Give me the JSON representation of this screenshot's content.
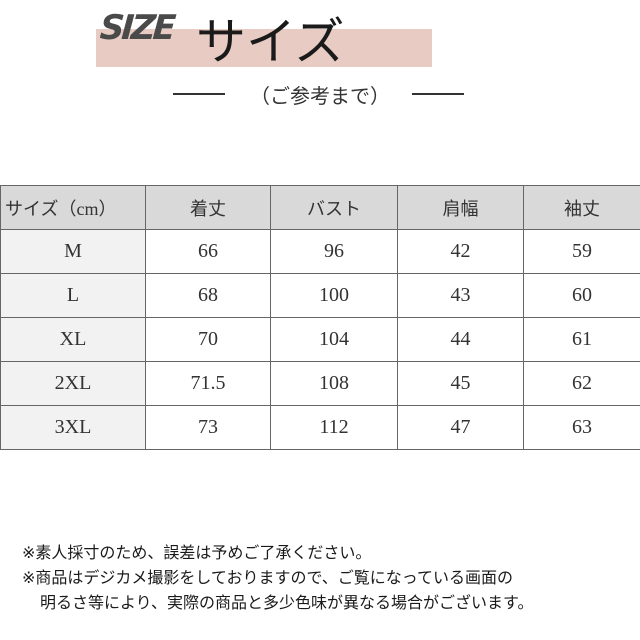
{
  "header": {
    "logo_text": "SIZE",
    "title": "サイズ",
    "subtitle": "（ご参考まで）",
    "band_color": "#e8cbc3"
  },
  "table": {
    "headers": [
      "サイズ（cm）",
      "着丈",
      "バスト",
      "肩幅",
      "袖丈"
    ],
    "rows": [
      [
        "M",
        "66",
        "96",
        "42",
        "59"
      ],
      [
        "L",
        "68",
        "100",
        "43",
        "60"
      ],
      [
        "XL",
        "70",
        "104",
        "44",
        "61"
      ],
      [
        "2XL",
        "71.5",
        "108",
        "45",
        "62"
      ],
      [
        "3XL",
        "73",
        "112",
        "47",
        "63"
      ]
    ],
    "header_bg": "#d9d9d9"
  },
  "notes": [
    "※素人採寸のため、誤差は予めご了承ください。",
    "※商品はデジカメ撮影をしておりますので、ご覧になっている画面の",
    "明るさ等により、実際の商品と多少色味が異なる場合がございます。"
  ]
}
